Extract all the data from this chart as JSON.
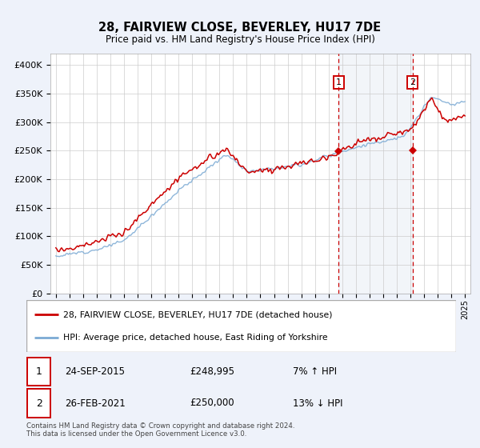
{
  "title": "28, FAIRVIEW CLOSE, BEVERLEY, HU17 7DE",
  "subtitle": "Price paid vs. HM Land Registry's House Price Index (HPI)",
  "red_label": "28, FAIRVIEW CLOSE, BEVERLEY, HU17 7DE (detached house)",
  "blue_label": "HPI: Average price, detached house, East Riding of Yorkshire",
  "annotation1": {
    "num": "1",
    "date": "24-SEP-2015",
    "price": "£248,995",
    "change": "7% ↑ HPI"
  },
  "annotation2": {
    "num": "2",
    "date": "26-FEB-2021",
    "price": "£250,000",
    "change": "13% ↓ HPI"
  },
  "footer": "Contains HM Land Registry data © Crown copyright and database right 2024.\nThis data is licensed under the Open Government Licence v3.0.",
  "ylim": [
    0,
    420000
  ],
  "yticks": [
    0,
    50000,
    100000,
    150000,
    200000,
    250000,
    300000,
    350000,
    400000
  ],
  "ytick_labels": [
    "£0",
    "£50K",
    "£100K",
    "£150K",
    "£200K",
    "£250K",
    "£300K",
    "£350K",
    "£400K"
  ],
  "bg_color": "#eef2fa",
  "plot_bg": "#ffffff",
  "red_color": "#cc0000",
  "blue_color": "#7baad4",
  "marker1_x": 2015.73,
  "marker1_y": 248995,
  "marker2_x": 2021.15,
  "marker2_y": 250000,
  "vline1_x": 2015.73,
  "vline2_x": 2021.15,
  "shade_xmin": 2015.73,
  "shade_xmax": 2021.15,
  "xmin": 1994.6,
  "xmax": 2025.4
}
